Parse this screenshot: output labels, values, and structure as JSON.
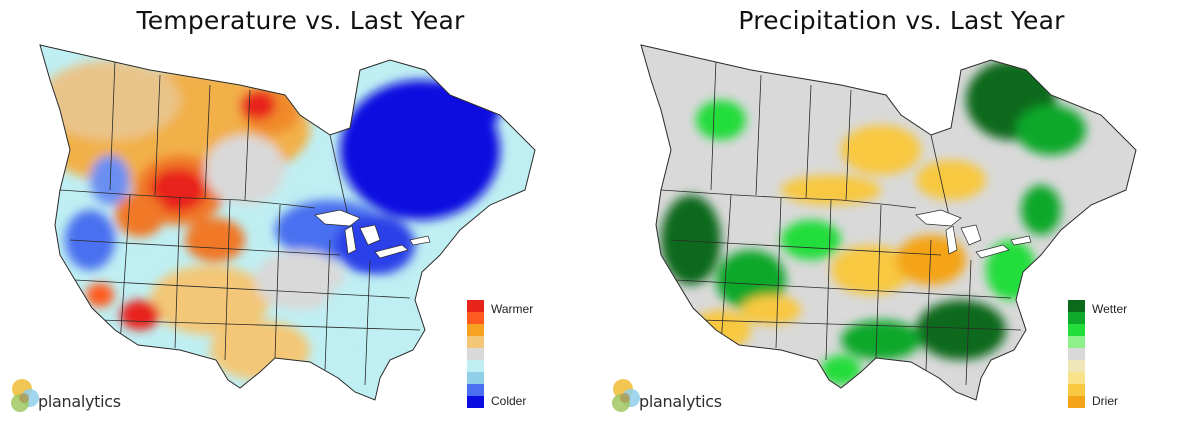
{
  "panels": [
    {
      "title": "Temperature vs. Last Year",
      "legend": {
        "top_label": "Warmer",
        "bottom_label": "Colder",
        "colors": [
          "#e8231a",
          "#ff5a1f",
          "#f7a223",
          "#f3c777",
          "#d9d9d9",
          "#bfeff3",
          "#8fcfe8",
          "#4a6ff0",
          "#0a0ce0"
        ]
      },
      "logo": "planalytics"
    },
    {
      "title": "Precipitation vs. Last Year",
      "legend": {
        "top_label": "Wetter",
        "bottom_label": "Drier",
        "colors": [
          "#0a6a1a",
          "#0ea82a",
          "#22dd3a",
          "#8ef08a",
          "#d9d9d9",
          "#efe6b8",
          "#f8e38a",
          "#f8c840",
          "#f4a418"
        ]
      },
      "logo": "planalytics"
    }
  ]
}
